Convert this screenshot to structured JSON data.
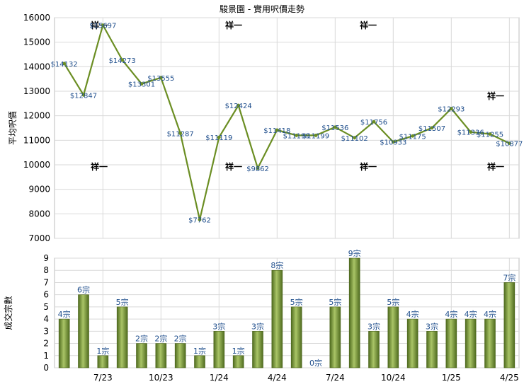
{
  "chart_data": [
    {
      "type": "line",
      "title": "駿景園 - 實用呎價走勢",
      "ylabel": "平均呎價",
      "ylim": [
        7000,
        16000
      ],
      "grid": true,
      "line_color": "#6b8e23",
      "label_color": "#1f4e8c",
      "series": [
        {
          "values": [
            14132,
            12847,
            15697,
            14273,
            13301,
            13555,
            11287,
            7762,
            11119,
            12424,
            9862,
            11418,
            11199,
            11199,
            11536,
            11102,
            11756,
            10933,
            11175,
            11507,
            12293,
            11336,
            11255,
            10877
          ],
          "labels": [
            "$14132",
            "$12847",
            "$15697",
            "$14273",
            "$13301",
            "$13555",
            "$11287",
            "$7762",
            "$11119",
            "$12424",
            "$9862",
            "$11418",
            "$11199",
            "$11199",
            "$11536",
            "$11102",
            "$11756",
            "$10933",
            "$11175",
            "$11507",
            "$12293",
            "$11336",
            "$11255",
            "$10877"
          ]
        }
      ]
    },
    {
      "type": "bar",
      "ylabel": "成交宗數",
      "ylim": [
        0,
        9
      ],
      "grid": true,
      "bar_color": "#7a9a3a",
      "x_tick_labels": [
        "7/23",
        "10/23",
        "1/24",
        "4/24",
        "7/24",
        "10/24",
        "1/25",
        "4/25"
      ],
      "values": [
        4,
        6,
        1,
        5,
        2,
        2,
        2,
        1,
        3,
        1,
        3,
        8,
        5,
        0,
        5,
        9,
        3,
        5,
        4,
        3,
        4,
        4,
        4,
        7
      ],
      "labels": [
        "4宗",
        "6宗",
        "1宗",
        "5宗",
        "2宗",
        "2宗",
        "2宗",
        "1宗",
        "3宗",
        "1宗",
        "3宗",
        "8宗",
        "5宗",
        "0宗",
        "5宗",
        "9宗",
        "3宗",
        "5宗",
        "4宗",
        "3宗",
        "4宗",
        "4宗",
        "4宗",
        "7宗"
      ]
    }
  ],
  "watermark": "祥一"
}
